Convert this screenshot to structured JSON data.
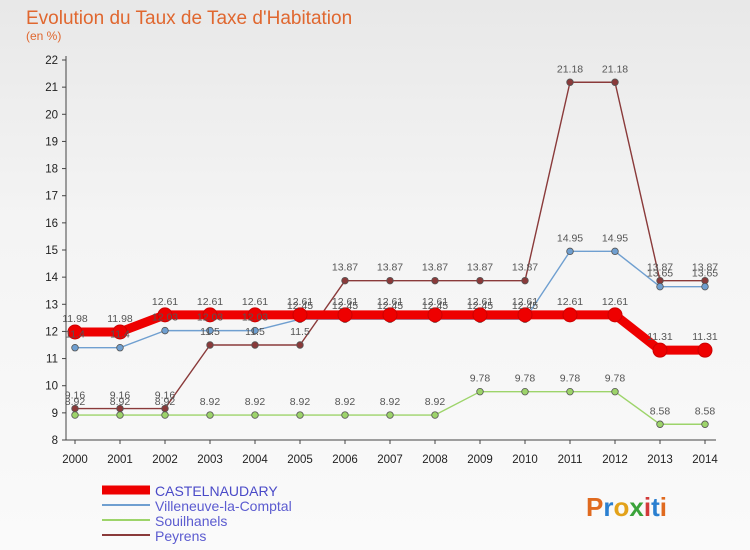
{
  "chart_data": {
    "type": "line",
    "title": "Evolution du Taux de Taxe d'Habitation",
    "ylabel": "(en %)",
    "x": [
      "2000",
      "2001",
      "2002",
      "2003",
      "2004",
      "2005",
      "2006",
      "2007",
      "2008",
      "2009",
      "2010",
      "2011",
      "2012",
      "2013",
      "2014"
    ],
    "yticks": [
      "8",
      "9",
      "10",
      "11",
      "12",
      "13",
      "14",
      "15",
      "16",
      "17",
      "18",
      "19",
      "20",
      "21",
      "22"
    ],
    "ylim": [
      8,
      22
    ],
    "grid": false,
    "series": [
      {
        "name": "CASTELNAUDARY",
        "color": "#ee0000",
        "values": [
          11.98,
          11.98,
          12.61,
          12.61,
          12.61,
          12.61,
          12.61,
          12.61,
          12.61,
          12.61,
          12.61,
          12.61,
          12.61,
          11.31,
          11.31
        ],
        "labels": [
          "11.98",
          "11.98",
          "12.61",
          "12.61",
          "12.61",
          "12.61",
          "12.61",
          "12.61",
          "12.61",
          "12.61",
          "12.61",
          "12.61",
          "12.61",
          "11.31",
          "11.31"
        ]
      },
      {
        "name": "Villeneuve-la-Comptal",
        "color": "#6f9fd0",
        "values": [
          11.4,
          11.4,
          12.03,
          12.03,
          12.03,
          12.45,
          12.45,
          12.45,
          12.45,
          12.45,
          12.45,
          14.95,
          14.95,
          13.65,
          13.65
        ],
        "labels": [
          "11.4",
          "11.4",
          "12.03",
          "12.03",
          "12.03",
          "12.45",
          "12.45",
          "12.45",
          "12.45",
          "12.45",
          "12.45",
          "14.95",
          "14.95",
          "13.65",
          "13.65"
        ]
      },
      {
        "name": "Souilhanels",
        "color": "#9dd46a",
        "values": [
          8.92,
          8.92,
          8.92,
          8.92,
          8.92,
          8.92,
          8.92,
          8.92,
          8.92,
          9.78,
          9.78,
          9.78,
          9.78,
          8.58,
          8.58
        ],
        "labels": [
          "8.92",
          "8.92",
          "8.92",
          "8.92",
          "8.92",
          "8.92",
          "8.92",
          "8.92",
          "8.92",
          "9.78",
          "9.78",
          "9.78",
          "9.78",
          "8.58",
          "8.58"
        ]
      },
      {
        "name": "Peyrens",
        "color": "#8a3a3a",
        "values": [
          9.16,
          9.16,
          9.16,
          11.5,
          11.5,
          11.5,
          13.87,
          13.87,
          13.87,
          13.87,
          13.87,
          21.18,
          21.18,
          13.87,
          13.87
        ],
        "labels": [
          "9.16",
          "9.16",
          "9.16",
          "11.5",
          "11.5",
          "11.5",
          "13.87",
          "13.87",
          "13.87",
          "13.87",
          "13.87",
          "21.18",
          "21.18",
          "13.87",
          "13.87"
        ]
      }
    ]
  },
  "logo": {
    "text": "Proxiti"
  }
}
